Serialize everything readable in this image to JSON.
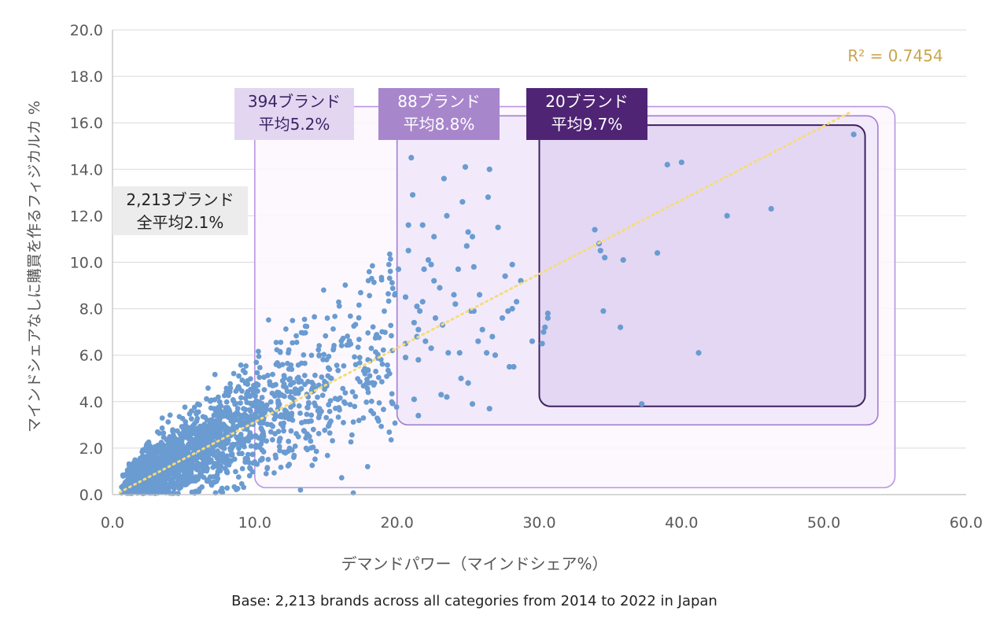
{
  "chart_data": {
    "type": "scatter",
    "xlabel": "デマンドパワー（マインドシェア%）",
    "ylabel": "マインドシェアなしに購買を作るフィジカルカ %",
    "xlim": [
      0,
      60
    ],
    "ylim": [
      0,
      20
    ],
    "x_ticks": [
      "0.0",
      "10.0",
      "20.0",
      "30.0",
      "40.0",
      "50.0",
      "60.0"
    ],
    "y_ticks": [
      "0.0",
      "2.0",
      "4.0",
      "6.0",
      "8.0",
      "10.0",
      "12.0",
      "14.0",
      "16.0",
      "18.0",
      "20.0"
    ],
    "grid": "horizontal",
    "point_color": "#6a9bd1",
    "trendline": {
      "label": "R² = 0.7454",
      "from": [
        0.5,
        0.1
      ],
      "to": [
        52,
        16.5
      ],
      "color": "#f5dc78"
    },
    "footnote": "Base: 2,213 brands across all categories from 2014 to 2022 in Japan",
    "annotations": [
      {
        "lines": [
          "2,213ブランド",
          "全平均2.1%"
        ],
        "fill": "#ececec",
        "text_color": "#222222"
      },
      {
        "lines": [
          "394ブランド",
          "平均5.2%"
        ],
        "fill": "#e3d6f1",
        "text_color": "#3c2466"
      },
      {
        "lines": [
          "88ブランド",
          "平均8.8%"
        ],
        "fill": "#a886cc",
        "text_color": "#ffffff"
      },
      {
        "lines": [
          "20ブランド",
          "平均9.7%"
        ],
        "fill": "#4f2474",
        "text_color": "#ffffff"
      }
    ],
    "regions": [
      {
        "x": [
          10,
          55
        ],
        "y": [
          0.3,
          16.7
        ],
        "fill": "#fbf7fe",
        "stroke": "#b995e0"
      },
      {
        "x": [
          20,
          53.8
        ],
        "y": [
          3.0,
          16.3
        ],
        "fill": "#f0e7f9",
        "stroke": "#a57cd4"
      },
      {
        "x": [
          30,
          52.9
        ],
        "y": [
          3.8,
          15.9
        ],
        "fill": "#e2d4f1",
        "stroke": "#3e2160"
      }
    ],
    "highlighted_points": [
      [
        52.1,
        15.5
      ],
      [
        21.0,
        14.5
      ],
      [
        24.8,
        14.1
      ],
      [
        26.5,
        14.0
      ],
      [
        40.0,
        14.3
      ],
      [
        39.0,
        14.2
      ],
      [
        23.3,
        13.6
      ],
      [
        21.1,
        12.9
      ],
      [
        26.4,
        12.8
      ],
      [
        24.6,
        12.6
      ],
      [
        43.2,
        12.0
      ],
      [
        46.3,
        12.3
      ],
      [
        23.5,
        12.0
      ],
      [
        21.8,
        11.6
      ],
      [
        20.8,
        11.6
      ],
      [
        27.1,
        11.5
      ],
      [
        25.0,
        11.3
      ],
      [
        33.9,
        11.4
      ],
      [
        22.6,
        11.1
      ],
      [
        25.3,
        11.1
      ],
      [
        34.2,
        10.8
      ],
      [
        24.9,
        10.7
      ],
      [
        20.8,
        10.5
      ],
      [
        38.3,
        10.4
      ],
      [
        34.3,
        10.5
      ],
      [
        22.2,
        10.1
      ],
      [
        34.6,
        10.2
      ],
      [
        35.9,
        10.1
      ],
      [
        22.4,
        9.9
      ],
      [
        28.1,
        9.9
      ],
      [
        21.9,
        9.7
      ],
      [
        25.4,
        9.8
      ],
      [
        24.3,
        9.7
      ],
      [
        20.1,
        9.7
      ],
      [
        27.6,
        9.4
      ],
      [
        22.6,
        9.2
      ],
      [
        28.7,
        9.2
      ],
      [
        23.0,
        8.9
      ],
      [
        20.6,
        8.5
      ],
      [
        25.8,
        8.6
      ],
      [
        24.0,
        8.6
      ],
      [
        21.8,
        8.3
      ],
      [
        24.1,
        8.2
      ],
      [
        28.4,
        8.3
      ],
      [
        21.4,
        8.1
      ],
      [
        21.6,
        7.9
      ],
      [
        25.4,
        7.9
      ],
      [
        27.8,
        7.9
      ],
      [
        22.7,
        7.6
      ],
      [
        28.1,
        8.0
      ],
      [
        27.4,
        7.6
      ],
      [
        30.6,
        7.8
      ],
      [
        30.6,
        7.6
      ],
      [
        21.2,
        7.4
      ],
      [
        34.5,
        7.9
      ],
      [
        23.2,
        7.3
      ],
      [
        35.7,
        7.2
      ],
      [
        30.4,
        7.2
      ],
      [
        21.5,
        7.1
      ],
      [
        30.3,
        7.0
      ],
      [
        26.0,
        7.1
      ],
      [
        21.4,
        6.8
      ],
      [
        26.7,
        6.8
      ],
      [
        29.5,
        6.6
      ],
      [
        30.2,
        6.5
      ],
      [
        22.0,
        6.6
      ],
      [
        25.7,
        6.6
      ],
      [
        20.6,
        6.5
      ],
      [
        22.4,
        6.3
      ],
      [
        41.2,
        6.1
      ],
      [
        23.6,
        6.1
      ],
      [
        26.9,
        6.0
      ],
      [
        27.9,
        5.5
      ],
      [
        28.2,
        5.5
      ],
      [
        21.5,
        5.8
      ],
      [
        20.6,
        5.9
      ],
      [
        24.5,
        5.0
      ],
      [
        25.0,
        4.8
      ],
      [
        23.1,
        4.3
      ],
      [
        21.2,
        4.1
      ],
      [
        25.3,
        3.9
      ],
      [
        26.5,
        3.7
      ],
      [
        37.2,
        3.9
      ],
      [
        21.5,
        3.4
      ],
      [
        23.5,
        4.2
      ],
      [
        26.3,
        6.1
      ],
      [
        24.4,
        6.1
      ],
      [
        25.2,
        7.9
      ]
    ],
    "cloud": {
      "count": 1900,
      "x_range": [
        0.5,
        20.5
      ],
      "slope": 0.33
    }
  }
}
